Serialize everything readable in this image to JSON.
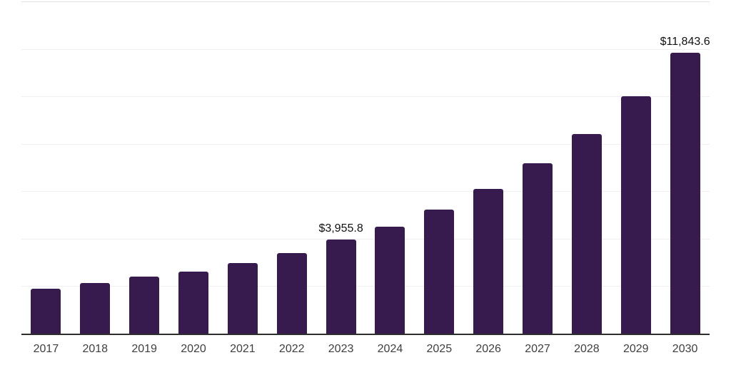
{
  "chart_data": {
    "type": "bar",
    "title": "",
    "categories": [
      "2017",
      "2018",
      "2019",
      "2020",
      "2021",
      "2022",
      "2023",
      "2024",
      "2025",
      "2026",
      "2027",
      "2028",
      "2029",
      "2030"
    ],
    "values": [
      1900,
      2140,
      2400,
      2620,
      2980,
      3410,
      3955.8,
      4510,
      5220,
      6100,
      7170,
      8420,
      9990,
      11843.6
    ],
    "data_labels": {
      "2023": "$3,955.8",
      "2030": "$11,843.6"
    },
    "xlabel": "",
    "ylabel": "",
    "ylim": [
      0,
      14000
    ],
    "gridline_step": 2000,
    "grid": "horizontal",
    "legend_position": "none",
    "colors": {
      "bar": "#371a4e",
      "axis_line": "#2e2e2e",
      "gridline": "#f0f0f0",
      "top_gridline": "#e2e2e2",
      "data_label": "#111111",
      "tick_label": "#3f3f3f",
      "background": "#ffffff"
    }
  }
}
